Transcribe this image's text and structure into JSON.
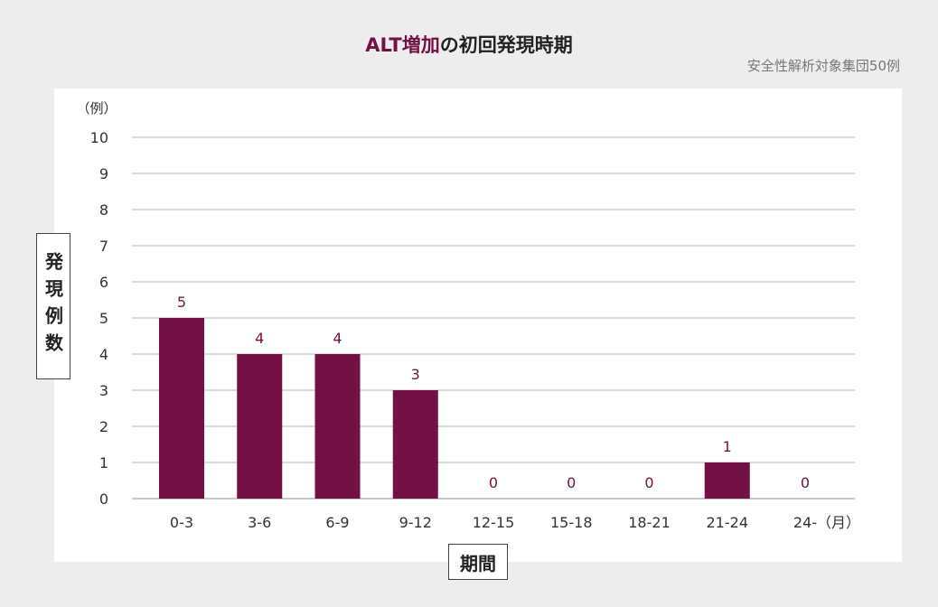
{
  "title": {
    "accent": "ALT増加",
    "rest": "の初回発現時期"
  },
  "subtitle": "安全性解析対象集団50例",
  "colors": {
    "bar": "#731044",
    "value_label": "#731044",
    "grid": "#b5b5b5",
    "axis_text": "#333333"
  },
  "chart_data": {
    "type": "bar",
    "title": "ALT増加の初回発現時期",
    "subtitle": "安全性解析対象集団50例",
    "unit_y": "（例）",
    "unit_x": "（月）",
    "xlabel": "期間",
    "ylabel": "発現例数",
    "categories": [
      "0-3",
      "3-6",
      "6-9",
      "9-12",
      "12-15",
      "15-18",
      "18-21",
      "21-24",
      "24-"
    ],
    "values": [
      5,
      4,
      4,
      3,
      0,
      0,
      0,
      1,
      0
    ],
    "ylim": [
      0,
      10
    ],
    "yticks": [
      0,
      1,
      2,
      3,
      4,
      5,
      6,
      7,
      8,
      9,
      10
    ],
    "grid": true,
    "legend": "none"
  }
}
